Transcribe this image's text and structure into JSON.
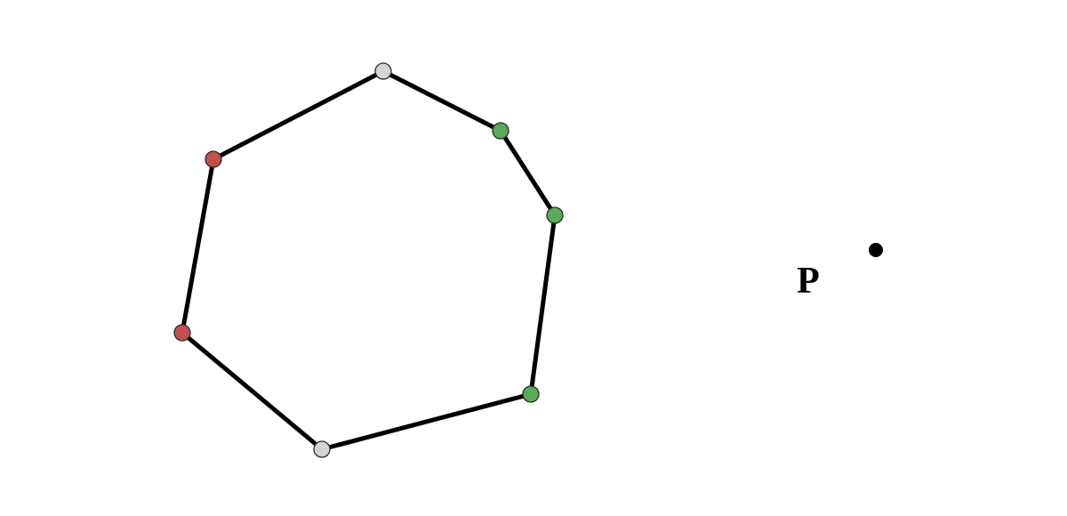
{
  "diagram": {
    "point_label": "P",
    "vertex_colors": {
      "red": "#c05050",
      "green": "#5aaa5a",
      "gray": "#d4d4d4",
      "point": "#000000"
    },
    "vertices": [
      {
        "id": "v0",
        "color": "gray"
      },
      {
        "id": "v1",
        "color": "green"
      },
      {
        "id": "v2",
        "color": "green"
      },
      {
        "id": "v3",
        "color": "green"
      },
      {
        "id": "v4",
        "color": "gray"
      },
      {
        "id": "v5",
        "color": "red"
      },
      {
        "id": "v6",
        "color": "red"
      }
    ],
    "edges": [
      [
        "v0",
        "v1"
      ],
      [
        "v1",
        "v2"
      ],
      [
        "v2",
        "v3"
      ],
      [
        "v3",
        "v4"
      ],
      [
        "v4",
        "v5"
      ],
      [
        "v5",
        "v6"
      ],
      [
        "v6",
        "v0"
      ]
    ]
  }
}
